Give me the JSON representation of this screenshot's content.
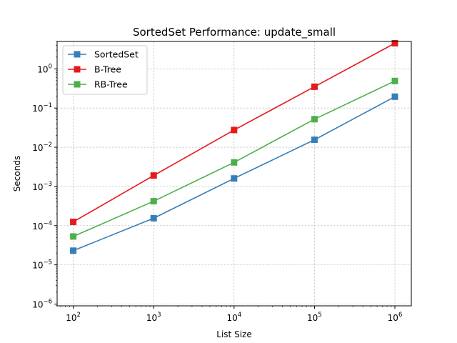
{
  "chart_data": {
    "type": "line",
    "title": "SortedSet Performance: update_small",
    "xlabel": "List Size",
    "ylabel": "Seconds",
    "xscale": "log",
    "yscale": "log",
    "x": [
      100,
      1000,
      10000,
      100000,
      1000000
    ],
    "xlim": [
      63,
      1600000
    ],
    "ylim": [
      9e-07,
      5
    ],
    "x_ticks": [
      {
        "base": "10",
        "exp": "2",
        "value": 100
      },
      {
        "base": "10",
        "exp": "3",
        "value": 1000
      },
      {
        "base": "10",
        "exp": "4",
        "value": 10000
      },
      {
        "base": "10",
        "exp": "5",
        "value": 100000
      },
      {
        "base": "10",
        "exp": "6",
        "value": 1000000
      }
    ],
    "y_ticks": [
      {
        "base": "10",
        "exp": "−6",
        "value": 1e-06
      },
      {
        "base": "10",
        "exp": "−5",
        "value": 1e-05
      },
      {
        "base": "10",
        "exp": "−4",
        "value": 0.0001
      },
      {
        "base": "10",
        "exp": "−3",
        "value": 0.001
      },
      {
        "base": "10",
        "exp": "−2",
        "value": 0.01
      },
      {
        "base": "10",
        "exp": "−1",
        "value": 0.1
      },
      {
        "base": "10",
        "exp": "0",
        "value": 1
      }
    ],
    "grid": true,
    "legend_position": "top-left",
    "series": [
      {
        "name": "SortedSet",
        "color": "#377eb8",
        "marker": "square",
        "values": [
          2.3e-05,
          0.000155,
          0.0016,
          0.0155,
          0.195
        ]
      },
      {
        "name": "B-Tree",
        "color": "#e41a1c",
        "marker": "square",
        "values": [
          0.000125,
          0.0019,
          0.0275,
          0.35,
          4.5
        ]
      },
      {
        "name": "RB-Tree",
        "color": "#4daf4a",
        "marker": "square",
        "values": [
          5.3e-05,
          0.00042,
          0.0041,
          0.052,
          0.49
        ]
      }
    ]
  }
}
